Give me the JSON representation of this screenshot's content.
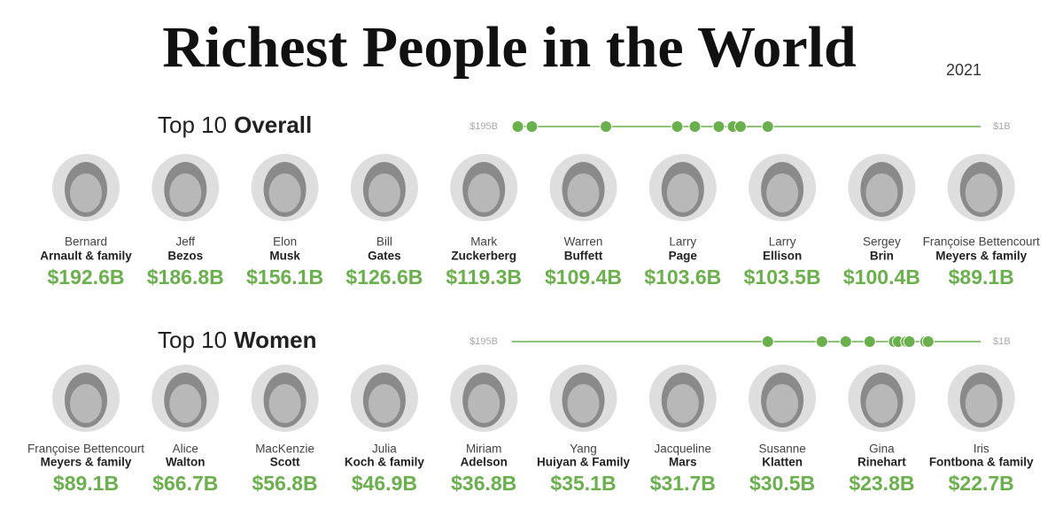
{
  "title": "Richest People in the World",
  "year": "2021",
  "chart_data": [
    {
      "type": "dot-strip",
      "heading": "Top 10",
      "heading_bold": "Overall",
      "color": "#6ab04c",
      "xlim": [
        195,
        1
      ],
      "xticks": [
        {
          "value": 195,
          "label": "$195B"
        },
        {
          "value": 1,
          "label": "$1B"
        }
      ],
      "people": [
        {
          "first": "Bernard",
          "last": "Arnault & family"
        },
        {
          "first": "Jeff",
          "last": "Bezos"
        },
        {
          "first": "Elon",
          "last": "Musk"
        },
        {
          "first": "Bill",
          "last": "Gates"
        },
        {
          "first": "Mark",
          "last": "Zuckerberg"
        },
        {
          "first": "Warren",
          "last": "Buffett"
        },
        {
          "first": "Larry",
          "last": "Page"
        },
        {
          "first": "Larry",
          "last": "Ellison"
        },
        {
          "first": "Sergey",
          "last": "Brin"
        },
        {
          "first": "Françoise Bettencourt",
          "last": "Meyers & family"
        }
      ],
      "values": [
        192.6,
        186.8,
        156.1,
        126.6,
        119.3,
        109.4,
        103.6,
        103.5,
        100.4,
        89.1
      ],
      "value_labels": [
        "$192.6B",
        "$186.8B",
        "$156.1B",
        "$126.6B",
        "$119.3B",
        "$109.4B",
        "$103.6B",
        "$103.5B",
        "$100.4B",
        "$89.1B"
      ]
    },
    {
      "type": "dot-strip",
      "heading": "Top 10",
      "heading_bold": "Women",
      "color": "#6ab04c",
      "xlim": [
        195,
        1
      ],
      "xticks": [
        {
          "value": 195,
          "label": "$195B"
        },
        {
          "value": 1,
          "label": "$1B"
        }
      ],
      "people": [
        {
          "first": "Françoise Bettencourt",
          "last": "Meyers & family"
        },
        {
          "first": "Alice",
          "last": "Walton"
        },
        {
          "first": "MacKenzie",
          "last": "Scott"
        },
        {
          "first": "Julia",
          "last": "Koch & family"
        },
        {
          "first": "Miriam",
          "last": "Adelson"
        },
        {
          "first": "Yang",
          "last": "Huiyan & Family"
        },
        {
          "first": "Jacqueline",
          "last": "Mars"
        },
        {
          "first": "Susanne",
          "last": "Klatten"
        },
        {
          "first": "Gina",
          "last": "Rinehart"
        },
        {
          "first": "Iris",
          "last": "Fontbona & family"
        }
      ],
      "values": [
        89.1,
        66.7,
        56.8,
        46.9,
        36.8,
        35.1,
        31.7,
        30.5,
        23.8,
        22.7
      ],
      "value_labels": [
        "$89.1B",
        "$66.7B",
        "$56.8B",
        "$46.9B",
        "$36.8B",
        "$35.1B",
        "$31.7B",
        "$30.5B",
        "$23.8B",
        "$22.7B"
      ]
    }
  ]
}
